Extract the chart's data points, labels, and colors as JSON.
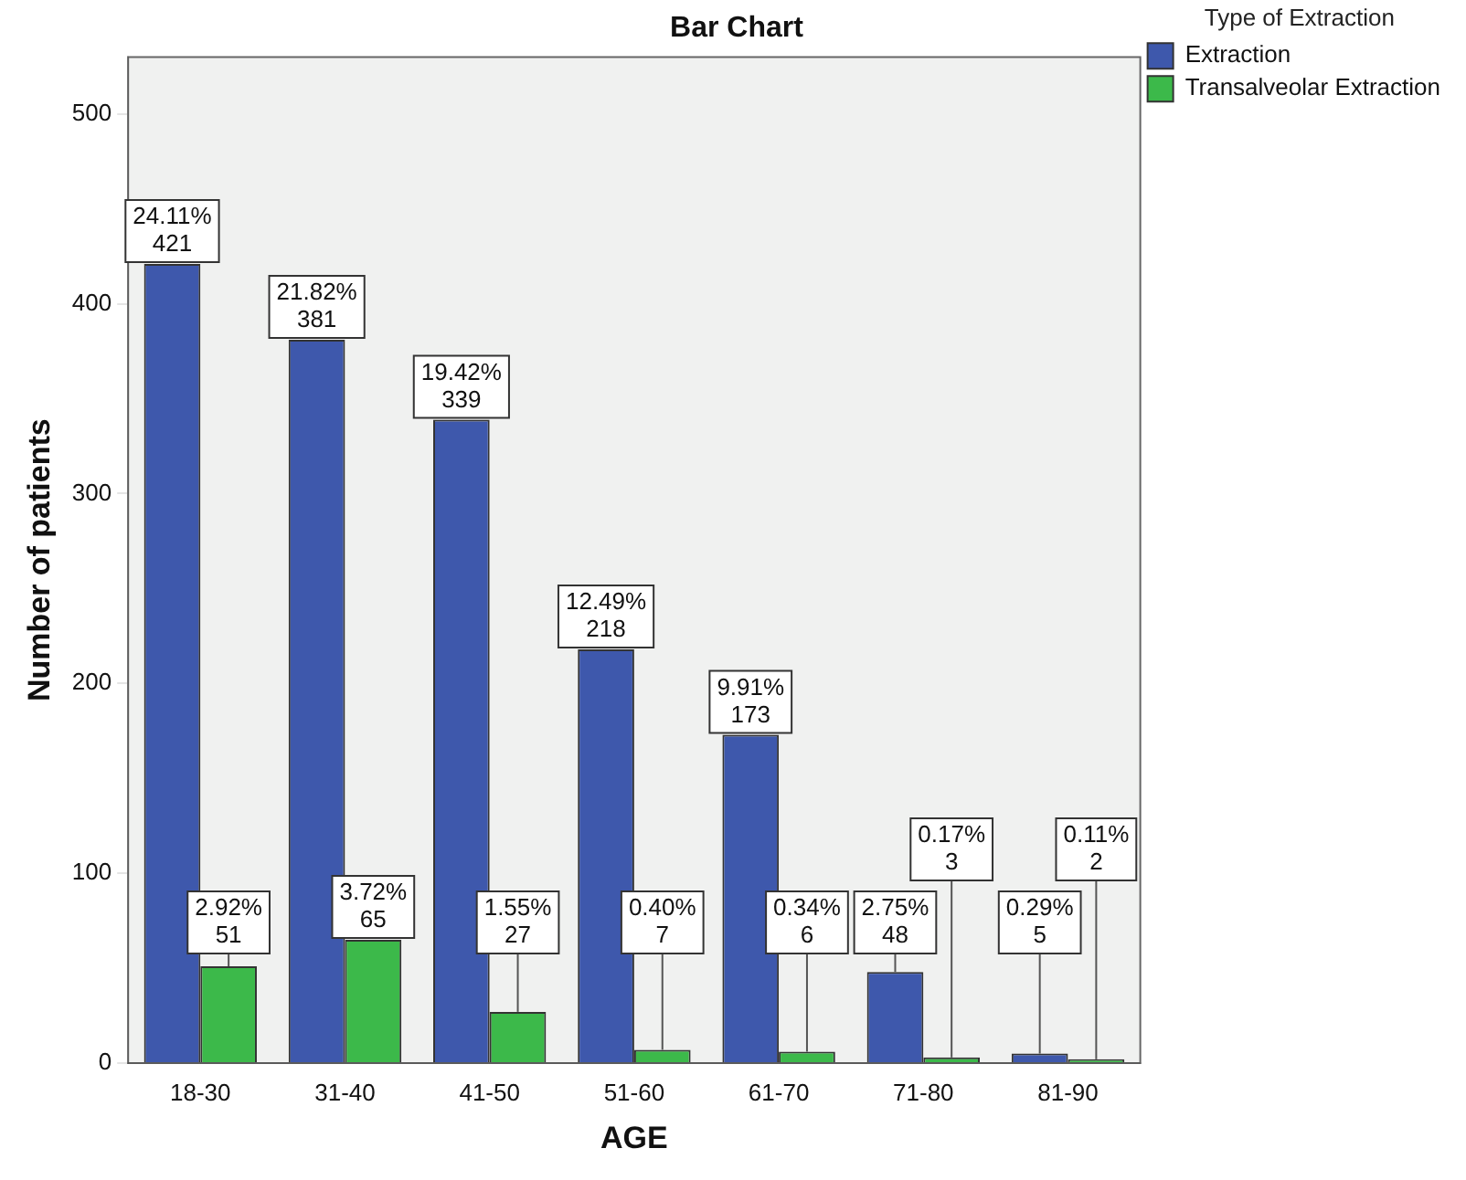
{
  "chart_data": {
    "type": "bar",
    "title": "Bar Chart",
    "xlabel": "AGE",
    "ylabel": "Number of patients",
    "legend_title": "Type of Extraction",
    "legend": "top right",
    "grid": false,
    "categories": [
      "18-30",
      "31-40",
      "41-50",
      "51-60",
      "61-70",
      "71-80",
      "81-90"
    ],
    "ylim": [
      0,
      530
    ],
    "yticks": [
      0,
      100,
      200,
      300,
      400,
      500
    ],
    "series": [
      {
        "name": "Extraction",
        "color": "#3e58ac",
        "values": [
          421,
          381,
          339,
          218,
          173,
          48,
          5
        ],
        "value_labels": [
          "24.11%\n421",
          "21.82%\n381",
          "19.42%\n339",
          "12.49%\n218",
          "9.91%\n173",
          "2.75%\n48",
          "0.29%\n5"
        ]
      },
      {
        "name": "Transalveolar Extraction",
        "color": "#3cb94a",
        "values": [
          51,
          65,
          27,
          7,
          6,
          3,
          2
        ],
        "value_labels": [
          "2.92%\n51",
          "3.72%\n65",
          "1.55%\n27",
          "0.40%\n7",
          "0.34%\n6",
          "0.17%\n3",
          "0.11%\n2"
        ]
      }
    ]
  }
}
